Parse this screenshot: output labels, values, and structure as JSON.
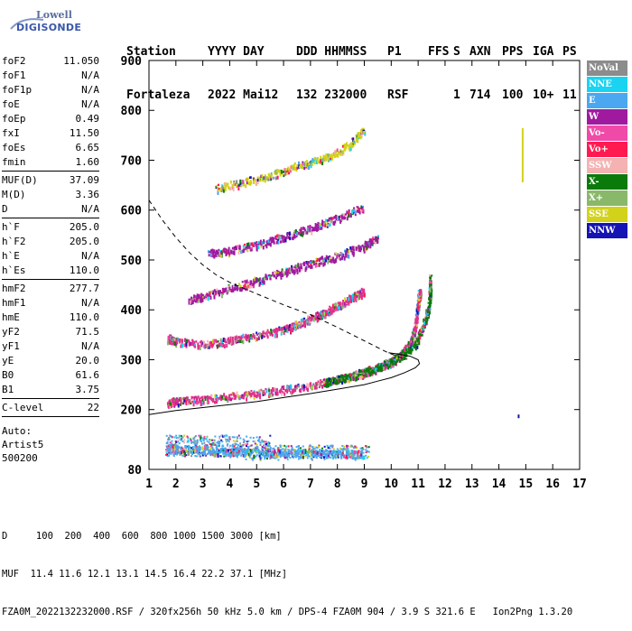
{
  "logo": {
    "line1": "Lowell",
    "line2": "DIGISONDE"
  },
  "header": {
    "row1": [
      "Station",
      "YYYY DAY",
      "DDD HHMMSS",
      "P1",
      "FFS",
      "S",
      "AXN",
      "PPS",
      "IGA",
      "PS"
    ],
    "row2": [
      "Fortaleza",
      "2022 Mai12",
      "132 232000",
      "RSF",
      "",
      "1",
      "714",
      "100",
      "10+",
      "11"
    ]
  },
  "params": [
    {
      "group": [
        {
          "k": "foF2",
          "v": "11.050"
        },
        {
          "k": "foF1",
          "v": "N/A"
        },
        {
          "k": "foF1p",
          "v": "N/A"
        },
        {
          "k": "foE",
          "v": "N/A"
        },
        {
          "k": "foEp",
          "v": "0.49"
        },
        {
          "k": "fxI",
          "v": "11.50"
        },
        {
          "k": "foEs",
          "v": "6.65"
        },
        {
          "k": "fmin",
          "v": "1.60"
        }
      ]
    },
    {
      "group": [
        {
          "k": "MUF(D)",
          "v": "37.09"
        },
        {
          "k": "M(D)",
          "v": "3.36"
        },
        {
          "k": "D",
          "v": "N/A"
        }
      ]
    },
    {
      "group": [
        {
          "k": "h`F",
          "v": "205.0"
        },
        {
          "k": "h`F2",
          "v": "205.0"
        },
        {
          "k": "h`E",
          "v": "N/A"
        },
        {
          "k": "h`Es",
          "v": "110.0"
        }
      ]
    },
    {
      "group": [
        {
          "k": "hmF2",
          "v": "277.7"
        },
        {
          "k": "hmF1",
          "v": "N/A"
        },
        {
          "k": "hmE",
          "v": "110.0"
        },
        {
          "k": "yF2",
          "v": "71.5"
        },
        {
          "k": "yF1",
          "v": "N/A"
        },
        {
          "k": "yE",
          "v": "20.0"
        },
        {
          "k": "B0",
          "v": "61.6"
        },
        {
          "k": "B1",
          "v": "3.75"
        }
      ]
    },
    {
      "group": [
        {
          "k": "C-level",
          "v": "22"
        }
      ]
    }
  ],
  "autoscaling": [
    "Auto:",
    "Artist5",
    "500200"
  ],
  "legend": [
    {
      "label": "NoVal",
      "color": "#8c8c8c"
    },
    {
      "label": "NNE",
      "color": "#19d3f0"
    },
    {
      "label": "E",
      "color": "#4aa7f0"
    },
    {
      "label": "W",
      "color": "#a01aa0"
    },
    {
      "label": "Vo-",
      "color": "#f04aa8"
    },
    {
      "label": "Vo+",
      "color": "#ff1a50"
    },
    {
      "label": "SSW",
      "color": "#f5b2b2"
    },
    {
      "label": "X-",
      "color": "#0a7a0a"
    },
    {
      "label": "X+",
      "color": "#8ab86a"
    },
    {
      "label": "SSE",
      "color": "#d2d21a"
    },
    {
      "label": "NNW",
      "color": "#1414b4"
    }
  ],
  "chart_data": {
    "type": "scatter",
    "title": "",
    "xlabel": "",
    "ylabel": "",
    "xlim": [
      1,
      17
    ],
    "ylim": [
      80,
      900
    ],
    "x_ticks": [
      "1",
      "2",
      "3",
      "4",
      "5",
      "6",
      "7",
      "8",
      "9",
      "10",
      "11",
      "12",
      "13",
      "14",
      "15",
      "16",
      "17"
    ],
    "y_ticks": [
      "80",
      "200",
      "300",
      "400",
      "500",
      "600",
      "700",
      "800",
      "900"
    ],
    "y_tick_values": [
      80,
      200,
      300,
      400,
      500,
      600,
      700,
      800,
      900
    ],
    "grid": false,
    "traces": [
      {
        "name": "O-trace F2",
        "color": "#e0308a",
        "points": [
          [
            1.7,
            215
          ],
          [
            2,
            218
          ],
          [
            3,
            222
          ],
          [
            4,
            228
          ],
          [
            5,
            234
          ],
          [
            6,
            242
          ],
          [
            7,
            250
          ],
          [
            8,
            262
          ],
          [
            9,
            276
          ],
          [
            9.5,
            286
          ],
          [
            10,
            298
          ],
          [
            10.4,
            313
          ],
          [
            10.7,
            335
          ],
          [
            10.9,
            372
          ],
          [
            11.0,
            420
          ],
          [
            11.05,
            440
          ]
        ]
      },
      {
        "name": "X-trace F2",
        "color": "#0a7a0a",
        "points": [
          [
            7.5,
            255
          ],
          [
            8,
            262
          ],
          [
            8.5,
            268
          ],
          [
            9,
            278
          ],
          [
            9.5,
            287
          ],
          [
            10,
            298
          ],
          [
            10.5,
            315
          ],
          [
            10.9,
            335
          ],
          [
            11.1,
            360
          ],
          [
            11.3,
            390
          ],
          [
            11.4,
            410
          ],
          [
            11.45,
            470
          ]
        ]
      },
      {
        "name": "2nd hop F2",
        "color": "#e0308a",
        "points": [
          [
            1.7,
            345
          ],
          [
            2,
            338
          ],
          [
            3,
            332
          ],
          [
            4,
            340
          ],
          [
            5,
            350
          ],
          [
            6,
            362
          ],
          [
            6.5,
            372
          ],
          [
            7,
            385
          ],
          [
            7.5,
            395
          ],
          [
            8,
            410
          ],
          [
            8.5,
            425
          ],
          [
            9,
            440
          ]
        ]
      },
      {
        "name": "3rd hop",
        "color": "#a01aa0",
        "points": [
          [
            2.5,
            422
          ],
          [
            3,
            428
          ],
          [
            4,
            445
          ],
          [
            5,
            460
          ],
          [
            6,
            478
          ],
          [
            7,
            495
          ],
          [
            8,
            510
          ],
          [
            9,
            530
          ],
          [
            9.5,
            545
          ]
        ]
      },
      {
        "name": "4th hop",
        "color": "#a01aa0",
        "points": [
          [
            3.2,
            515
          ],
          [
            4,
            520
          ],
          [
            5,
            532
          ],
          [
            6,
            548
          ],
          [
            7,
            565
          ],
          [
            8,
            585
          ],
          [
            9,
            610
          ]
        ]
      },
      {
        "name": "upper faint",
        "color": "#d2d21a",
        "points": [
          [
            3.5,
            645
          ],
          [
            4.5,
            658
          ],
          [
            5.5,
            670
          ],
          [
            6.5,
            690
          ],
          [
            7.5,
            705
          ],
          [
            8.5,
            735
          ],
          [
            9,
            765
          ]
        ]
      },
      {
        "name": "Es",
        "color": "#4aa7f0",
        "points": [
          [
            1.7,
            125
          ],
          [
            2,
            123
          ],
          [
            3,
            120
          ],
          [
            4,
            118
          ],
          [
            5,
            116
          ],
          [
            6,
            115
          ],
          [
            7,
            114
          ],
          [
            8,
            112
          ],
          [
            9,
            112
          ]
        ]
      }
    ],
    "model_curves": [
      {
        "name": "true height profile",
        "style": "solid",
        "points": [
          [
            1,
            190
          ],
          [
            2,
            198
          ],
          [
            3,
            204
          ],
          [
            4,
            210
          ],
          [
            5,
            216
          ],
          [
            6,
            224
          ],
          [
            7,
            232
          ],
          [
            8,
            241
          ],
          [
            9,
            250
          ],
          [
            9.5,
            257
          ],
          [
            10,
            264
          ],
          [
            10.5,
            274
          ],
          [
            10.9,
            284
          ],
          [
            11.05,
            292
          ],
          [
            11.0,
            300
          ],
          [
            10.7,
            307
          ],
          [
            10.3,
            311
          ],
          [
            9.9,
            314
          ]
        ]
      },
      {
        "name": "MUF curve",
        "style": "dashed",
        "points": [
          [
            1,
            620
          ],
          [
            1.5,
            580
          ],
          [
            2,
            545
          ],
          [
            2.5,
            515
          ],
          [
            3,
            490
          ],
          [
            3.5,
            470
          ],
          [
            4,
            455
          ],
          [
            5,
            432
          ],
          [
            6,
            410
          ],
          [
            7,
            390
          ],
          [
            8,
            365
          ],
          [
            9,
            338
          ],
          [
            9.8,
            316
          ],
          [
            10.3,
            305
          ],
          [
            10.6,
            301
          ]
        ]
      }
    ],
    "isolated_marks": [
      [
        14.85,
        710
      ],
      [
        14.7,
        190
      ]
    ]
  },
  "footer": {
    "line1": "D     100  200  400  600  800 1000 1500 3000 [km]",
    "line2": "MUF  11.4 11.6 12.1 13.1 14.5 16.4 22.2 37.1 [MHz]",
    "line3": "FZA0M_2022132232000.RSF / 320fx256h 50 kHz 5.0 km / DPS-4 FZA0M 904 / 3.9 S 321.6 E   Ion2Png 1.3.20"
  }
}
